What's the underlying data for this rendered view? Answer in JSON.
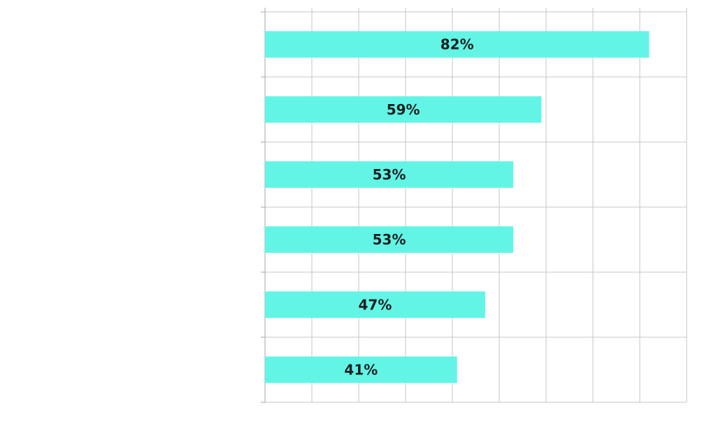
{
  "chart_data": {
    "type": "bar",
    "orientation": "horizontal",
    "categories": [
      "",
      "",
      "",
      "",
      "",
      ""
    ],
    "values": [
      82,
      59,
      53,
      53,
      47,
      41
    ],
    "value_labels": [
      "82%",
      "59%",
      "53%",
      "53%",
      "47%",
      "41%"
    ],
    "xlim": [
      0,
      90
    ],
    "grid": true,
    "title": "",
    "xlabel": "",
    "ylabel": ""
  },
  "colors": {
    "bar": "#62f5e6",
    "grid": "#d9d9d9",
    "grid_vertical": "#c4c4c4",
    "axis": "#a6a6a6",
    "label": "#1f1f1f"
  }
}
